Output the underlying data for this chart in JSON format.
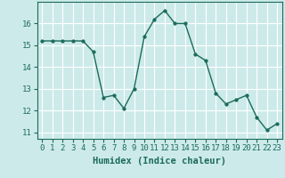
{
  "x": [
    0,
    1,
    2,
    3,
    4,
    5,
    6,
    7,
    8,
    9,
    10,
    11,
    12,
    13,
    14,
    15,
    16,
    17,
    18,
    19,
    20,
    21,
    22,
    23
  ],
  "y": [
    15.2,
    15.2,
    15.2,
    15.2,
    15.2,
    14.7,
    12.6,
    12.7,
    12.1,
    13.0,
    15.4,
    16.2,
    16.6,
    16.0,
    16.0,
    14.6,
    14.3,
    12.8,
    12.3,
    12.5,
    12.7,
    11.7,
    11.1,
    11.4
  ],
  "line_color": "#1a6b5a",
  "marker": "o",
  "marker_size": 2.5,
  "background_color": "#cdeaea",
  "grid_color": "#ffffff",
  "xlabel": "Humidex (Indice chaleur)",
  "xlim": [
    -0.5,
    23.5
  ],
  "ylim": [
    10.7,
    17.0
  ],
  "yticks": [
    11,
    12,
    13,
    14,
    15,
    16
  ],
  "xticks": [
    0,
    1,
    2,
    3,
    4,
    5,
    6,
    7,
    8,
    9,
    10,
    11,
    12,
    13,
    14,
    15,
    16,
    17,
    18,
    19,
    20,
    21,
    22,
    23
  ],
  "xtick_labels": [
    "0",
    "1",
    "2",
    "3",
    "4",
    "5",
    "6",
    "7",
    "8",
    "9",
    "10",
    "11",
    "12",
    "13",
    "14",
    "15",
    "16",
    "17",
    "18",
    "19",
    "20",
    "21",
    "22",
    "23"
  ],
  "xlabel_fontsize": 7.5,
  "tick_fontsize": 6.5,
  "line_width": 1.0
}
